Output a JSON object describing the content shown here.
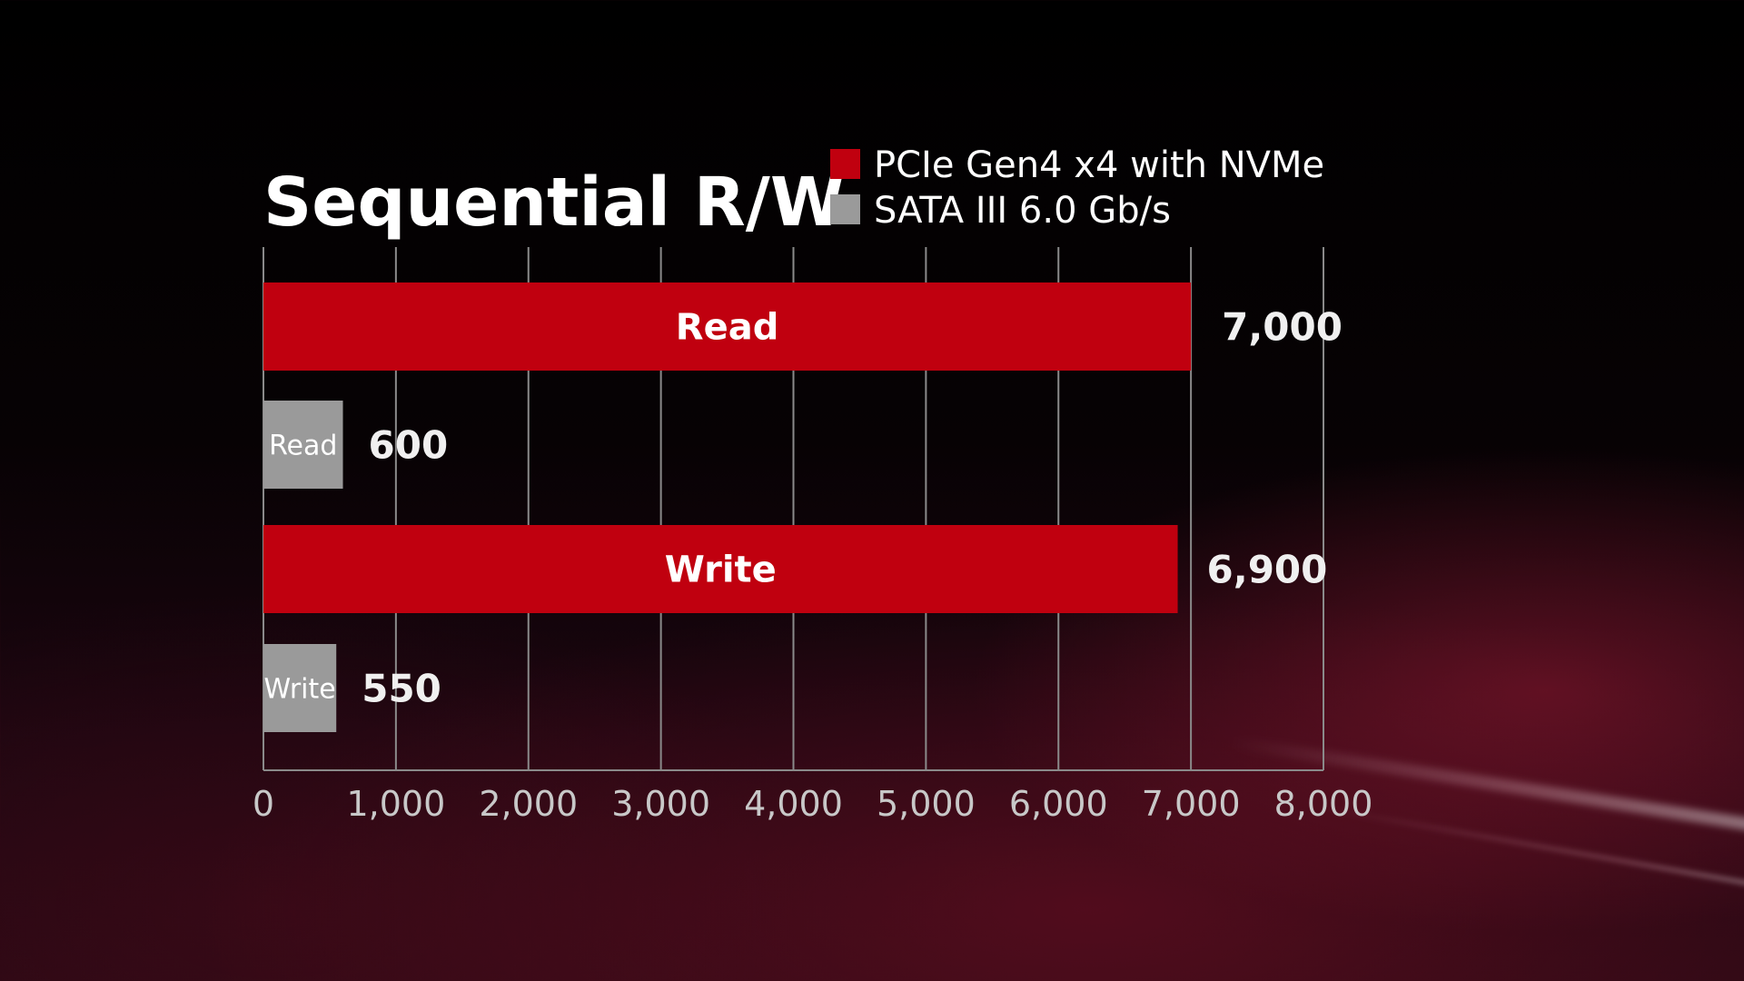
{
  "chart_data": {
    "type": "bar",
    "orientation": "horizontal",
    "title": "Sequential R/W",
    "xlim": [
      0,
      8000
    ],
    "x_ticks": [
      0,
      1000,
      2000,
      3000,
      4000,
      5000,
      6000,
      7000,
      8000
    ],
    "x_tick_labels": [
      "0",
      "1,000",
      "2,000",
      "3,000",
      "4,000",
      "5,000",
      "6,000",
      "7,000",
      "8,000"
    ],
    "grid": true,
    "legend": {
      "placement": "top-right",
      "entries": [
        {
          "name": "PCIe Gen4 x4 with NVMe",
          "color": "#c0000f"
        },
        {
          "name": "SATA III 6.0 Gb/s",
          "color": "#9a9a9a"
        }
      ]
    },
    "bars": [
      {
        "series": "PCIe Gen4 x4 with NVMe",
        "label": "Read",
        "value": 7000,
        "value_label": "7,000",
        "color": "#c0000f"
      },
      {
        "series": "SATA III 6.0 Gb/s",
        "label": "Read",
        "value": 600,
        "value_label": "600",
        "color": "#9a9a9a"
      },
      {
        "series": "PCIe Gen4 x4 with NVMe",
        "label": "Write",
        "value": 6900,
        "value_label": "6,900",
        "color": "#c0000f"
      },
      {
        "series": "SATA III 6.0 Gb/s",
        "label": "Write",
        "value": 550,
        "value_label": "550",
        "color": "#9a9a9a"
      }
    ]
  }
}
